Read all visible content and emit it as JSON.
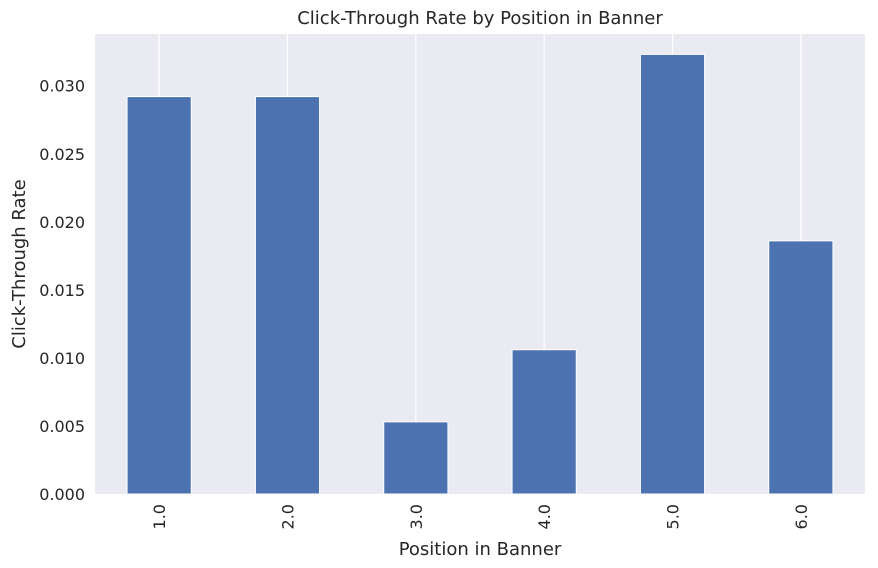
{
  "chart_data": {
    "type": "bar",
    "title": "Click-Through Rate by Position in Banner",
    "xlabel": "Position in Banner",
    "ylabel": "Click-Through Rate",
    "categories": [
      "1.0",
      "2.0",
      "3.0",
      "4.0",
      "5.0",
      "6.0"
    ],
    "values": [
      0.0292,
      0.0292,
      0.0053,
      0.0106,
      0.0323,
      0.0186
    ],
    "ylim": [
      0,
      0.0338
    ],
    "yticks": [
      "0.000",
      "0.005",
      "0.010",
      "0.015",
      "0.020",
      "0.025",
      "0.030"
    ],
    "grid": true,
    "bar_color": "#4c72b0",
    "plot_background": "#eaeaf2",
    "grid_color": "#ffffff"
  }
}
